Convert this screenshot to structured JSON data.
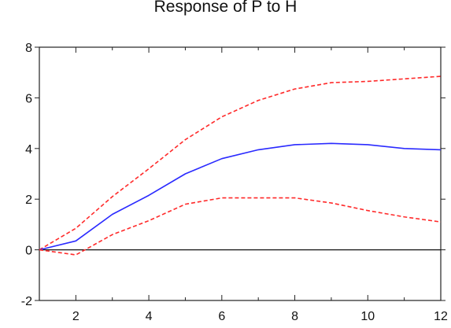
{
  "chart_data": {
    "type": "line",
    "title": "Response of P to H",
    "xlabel": "",
    "ylabel": "",
    "xlim": [
      1,
      12
    ],
    "ylim": [
      -2,
      8
    ],
    "x_ticks": [
      2,
      4,
      6,
      8,
      10,
      12
    ],
    "y_ticks": [
      -2,
      0,
      2,
      4,
      6,
      8
    ],
    "x": [
      1,
      2,
      3,
      4,
      5,
      6,
      7,
      8,
      9,
      10,
      11,
      12
    ],
    "zero_line": 0,
    "grid": false,
    "series": [
      {
        "role": "upper-band",
        "color": "#ff2a2a",
        "style": "dashed",
        "values": [
          0.0,
          0.85,
          2.1,
          3.2,
          4.35,
          5.25,
          5.9,
          6.35,
          6.6,
          6.65,
          6.75,
          6.85
        ]
      },
      {
        "role": "response",
        "color": "#2a2aff",
        "style": "solid",
        "values": [
          0.0,
          0.35,
          1.4,
          2.15,
          3.0,
          3.6,
          3.95,
          4.15,
          4.2,
          4.15,
          4.0,
          3.95
        ]
      },
      {
        "role": "lower-band",
        "color": "#ff2a2a",
        "style": "dashed",
        "values": [
          0.0,
          -0.2,
          0.6,
          1.15,
          1.8,
          2.05,
          2.05,
          2.05,
          1.85,
          1.55,
          1.3,
          1.1
        ]
      }
    ]
  }
}
